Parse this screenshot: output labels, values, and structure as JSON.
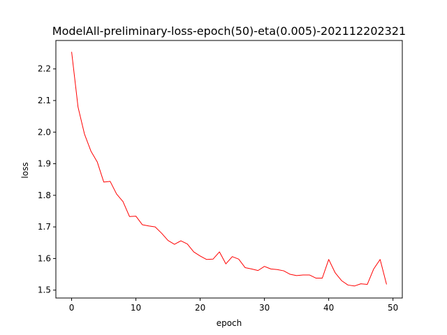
{
  "chart_data": {
    "type": "line",
    "title": "ModelAll-preliminary-loss-epoch(50)-eta(0.005)-202112202321",
    "xlabel": "epoch",
    "ylabel": "loss",
    "xlim": [
      -2.45,
      51.45
    ],
    "ylim": [
      1.475,
      2.29
    ],
    "xticks": [
      0,
      10,
      20,
      30,
      40,
      50
    ],
    "yticks": [
      1.5,
      1.6,
      1.7,
      1.8,
      1.9,
      2.0,
      2.1,
      2.2
    ],
    "xtick_labels": [
      "0",
      "10",
      "20",
      "30",
      "40",
      "50"
    ],
    "ytick_labels": [
      "1.5",
      "1.6",
      "1.7",
      "1.8",
      "1.9",
      "2.0",
      "2.1",
      "2.2"
    ],
    "grid": false,
    "series": [
      {
        "color": "#ff0000",
        "x": [
          0,
          1,
          2,
          3,
          4,
          5,
          6,
          7,
          8,
          9,
          10,
          11,
          12,
          13,
          14,
          15,
          16,
          17,
          18,
          19,
          20,
          21,
          22,
          23,
          24,
          25,
          26,
          27,
          28,
          29,
          30,
          31,
          32,
          33,
          34,
          35,
          36,
          37,
          38,
          39,
          40,
          41,
          42,
          43,
          44,
          45,
          46,
          47,
          48,
          49
        ],
        "y": [
          2.254,
          2.079,
          1.994,
          1.94,
          1.905,
          1.842,
          1.844,
          1.804,
          1.78,
          1.733,
          1.734,
          1.707,
          1.703,
          1.7,
          1.68,
          1.657,
          1.645,
          1.656,
          1.646,
          1.621,
          1.608,
          1.597,
          1.598,
          1.621,
          1.583,
          1.606,
          1.598,
          1.571,
          1.567,
          1.562,
          1.575,
          1.567,
          1.565,
          1.561,
          1.55,
          1.546,
          1.548,
          1.548,
          1.538,
          1.538,
          1.597,
          1.555,
          1.53,
          1.516,
          1.513,
          1.52,
          1.518,
          1.567,
          1.597,
          1.518
        ]
      }
    ]
  }
}
